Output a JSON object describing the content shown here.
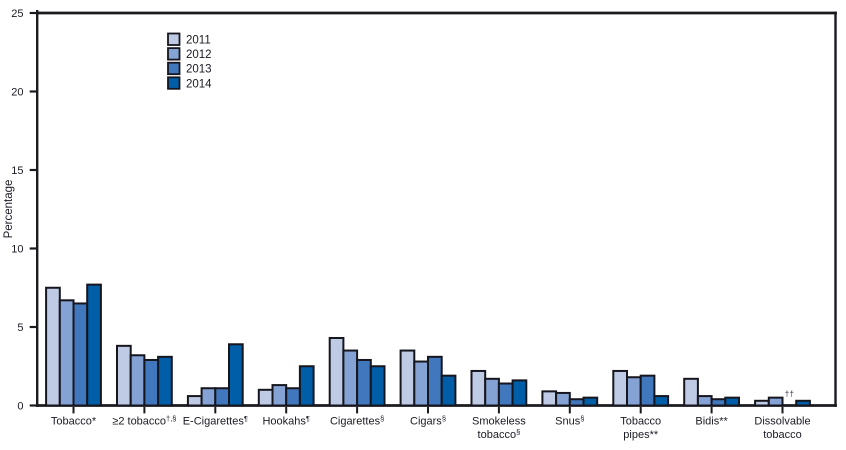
{
  "chart_data": {
    "type": "bar",
    "title": "",
    "xlabel": "",
    "ylabel": "Percentage",
    "ylim": [
      0,
      25
    ],
    "y_ticks": [
      0,
      5,
      10,
      15,
      20,
      25
    ],
    "grid": false,
    "frame": true,
    "legend_position": "upper-left-inside",
    "axis_color": "#1a1a1f",
    "text_color": "#1a1a24",
    "bar_border_color": "#16161e",
    "categories": [
      "Tobacco*",
      "≥2 tobacco†,§",
      "E-Cigarettes¶",
      "Hookahs¶",
      "Cigarettes§",
      "Cigars§",
      "Smokeless tobacco§",
      "Snus§",
      "Tobacco pipes**",
      "Bidis**",
      "Dissolvable tobacco"
    ],
    "category_labels": [
      {
        "lines": [
          [
            {
              "t": "Tobacco*"
            }
          ]
        ]
      },
      {
        "lines": [
          [
            {
              "t": "≥2 tobacco"
            },
            {
              "t": "†,§",
              "sup": true
            }
          ]
        ]
      },
      {
        "lines": [
          [
            {
              "t": "E-Cigarettes"
            },
            {
              "t": "¶",
              "sup": true
            }
          ]
        ]
      },
      {
        "lines": [
          [
            {
              "t": "Hookahs"
            },
            {
              "t": "¶",
              "sup": true
            }
          ]
        ]
      },
      {
        "lines": [
          [
            {
              "t": "Cigarettes"
            },
            {
              "t": "§",
              "sup": true
            }
          ]
        ]
      },
      {
        "lines": [
          [
            {
              "t": "Cigars"
            },
            {
              "t": "§",
              "sup": true
            }
          ]
        ]
      },
      {
        "lines": [
          [
            {
              "t": "Smokeless"
            }
          ],
          [
            {
              "t": "tobacco"
            },
            {
              "t": "§",
              "sup": true
            }
          ]
        ]
      },
      {
        "lines": [
          [
            {
              "t": "Snus"
            },
            {
              "t": "§",
              "sup": true
            }
          ]
        ]
      },
      {
        "lines": [
          [
            {
              "t": "Tobacco"
            }
          ],
          [
            {
              "t": "pipes**"
            }
          ]
        ]
      },
      {
        "lines": [
          [
            {
              "t": "Bidis**"
            }
          ]
        ]
      },
      {
        "lines": [
          [
            {
              "t": "Dissolvable"
            }
          ],
          [
            {
              "t": "tobacco"
            }
          ]
        ]
      }
    ],
    "series": [
      {
        "name": "2011",
        "color": "#bfcae5",
        "values": [
          7.5,
          3.8,
          0.6,
          1.0,
          4.3,
          3.5,
          2.2,
          0.9,
          2.2,
          1.7,
          0.3
        ]
      },
      {
        "name": "2012",
        "color": "#84a2d3",
        "values": [
          6.7,
          3.2,
          1.1,
          1.3,
          3.5,
          2.8,
          1.7,
          0.8,
          1.8,
          0.6,
          0.5
        ]
      },
      {
        "name": "2013",
        "color": "#4177bd",
        "values": [
          6.5,
          2.9,
          1.1,
          1.1,
          2.9,
          3.1,
          1.4,
          0.4,
          1.9,
          0.4,
          null
        ]
      },
      {
        "name": "2014",
        "color": "#005da8",
        "values": [
          7.7,
          3.1,
          3.9,
          2.5,
          2.5,
          1.9,
          1.6,
          0.5,
          0.6,
          0.5,
          0.3
        ]
      }
    ],
    "legend": [
      {
        "label": "2011",
        "color": "#bfcae5"
      },
      {
        "label": "2012",
        "color": "#84a2d3"
      },
      {
        "label": "2013",
        "color": "#4177bd"
      },
      {
        "label": "2014",
        "color": "#005da8"
      }
    ],
    "annotations": [
      {
        "text": "††",
        "category_index": 10,
        "series": "2013",
        "color": "#3c3c50"
      }
    ]
  }
}
